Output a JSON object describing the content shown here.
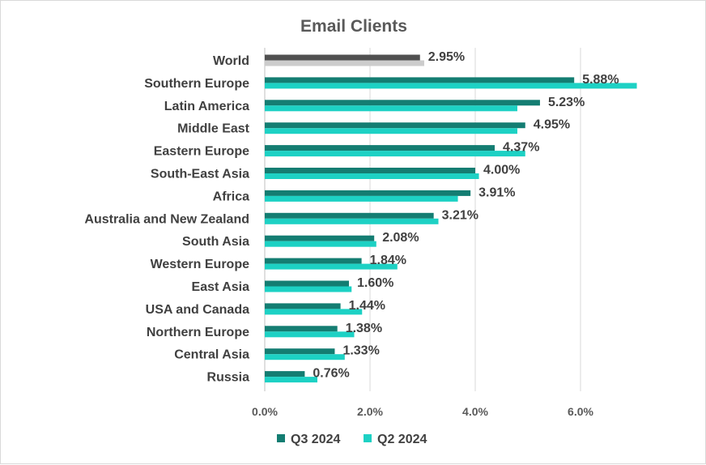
{
  "chart_data": {
    "type": "bar",
    "orientation": "horizontal",
    "title": "Email Clients",
    "categories": [
      "World",
      "Southern Europe",
      "Latin America",
      "Middle East",
      "Eastern Europe",
      "South-East Asia",
      "Africa",
      "Australia and New Zealand",
      "South Asia",
      "Western Europe",
      "East Asia",
      "USA and Canada",
      "Northern Europe",
      "Central Asia",
      "Russia"
    ],
    "series": [
      {
        "name": "Q3 2024",
        "values": [
          2.95,
          5.88,
          5.23,
          4.95,
          4.37,
          4.0,
          3.91,
          3.21,
          2.08,
          1.84,
          1.6,
          1.44,
          1.38,
          1.33,
          0.76
        ]
      },
      {
        "name": "Q2 2024",
        "values": [
          3.03,
          7.07,
          4.8,
          4.8,
          4.95,
          4.07,
          3.67,
          3.3,
          2.12,
          2.52,
          1.65,
          1.85,
          1.7,
          1.52,
          1.0
        ]
      }
    ],
    "data_labels": [
      "2.95%",
      "5.88%",
      "5.23%",
      "4.95%",
      "4.37%",
      "4.00%",
      "3.91%",
      "3.21%",
      "2.08%",
      "1.84%",
      "1.60%",
      "1.44%",
      "1.38%",
      "1.33%",
      "0.76%"
    ],
    "x_ticks": [
      "0.0%",
      "2.0%",
      "4.0%",
      "6.0%"
    ],
    "xlim": [
      0,
      8
    ],
    "grid": true,
    "legend_position": "bottom",
    "colors": {
      "q3": "#147d72",
      "q2": "#1dd1c4",
      "world_q3": "#505050",
      "world_q2": "#cccccc",
      "grid": "#d9d9d9",
      "axis": "#bfbfbf"
    }
  }
}
